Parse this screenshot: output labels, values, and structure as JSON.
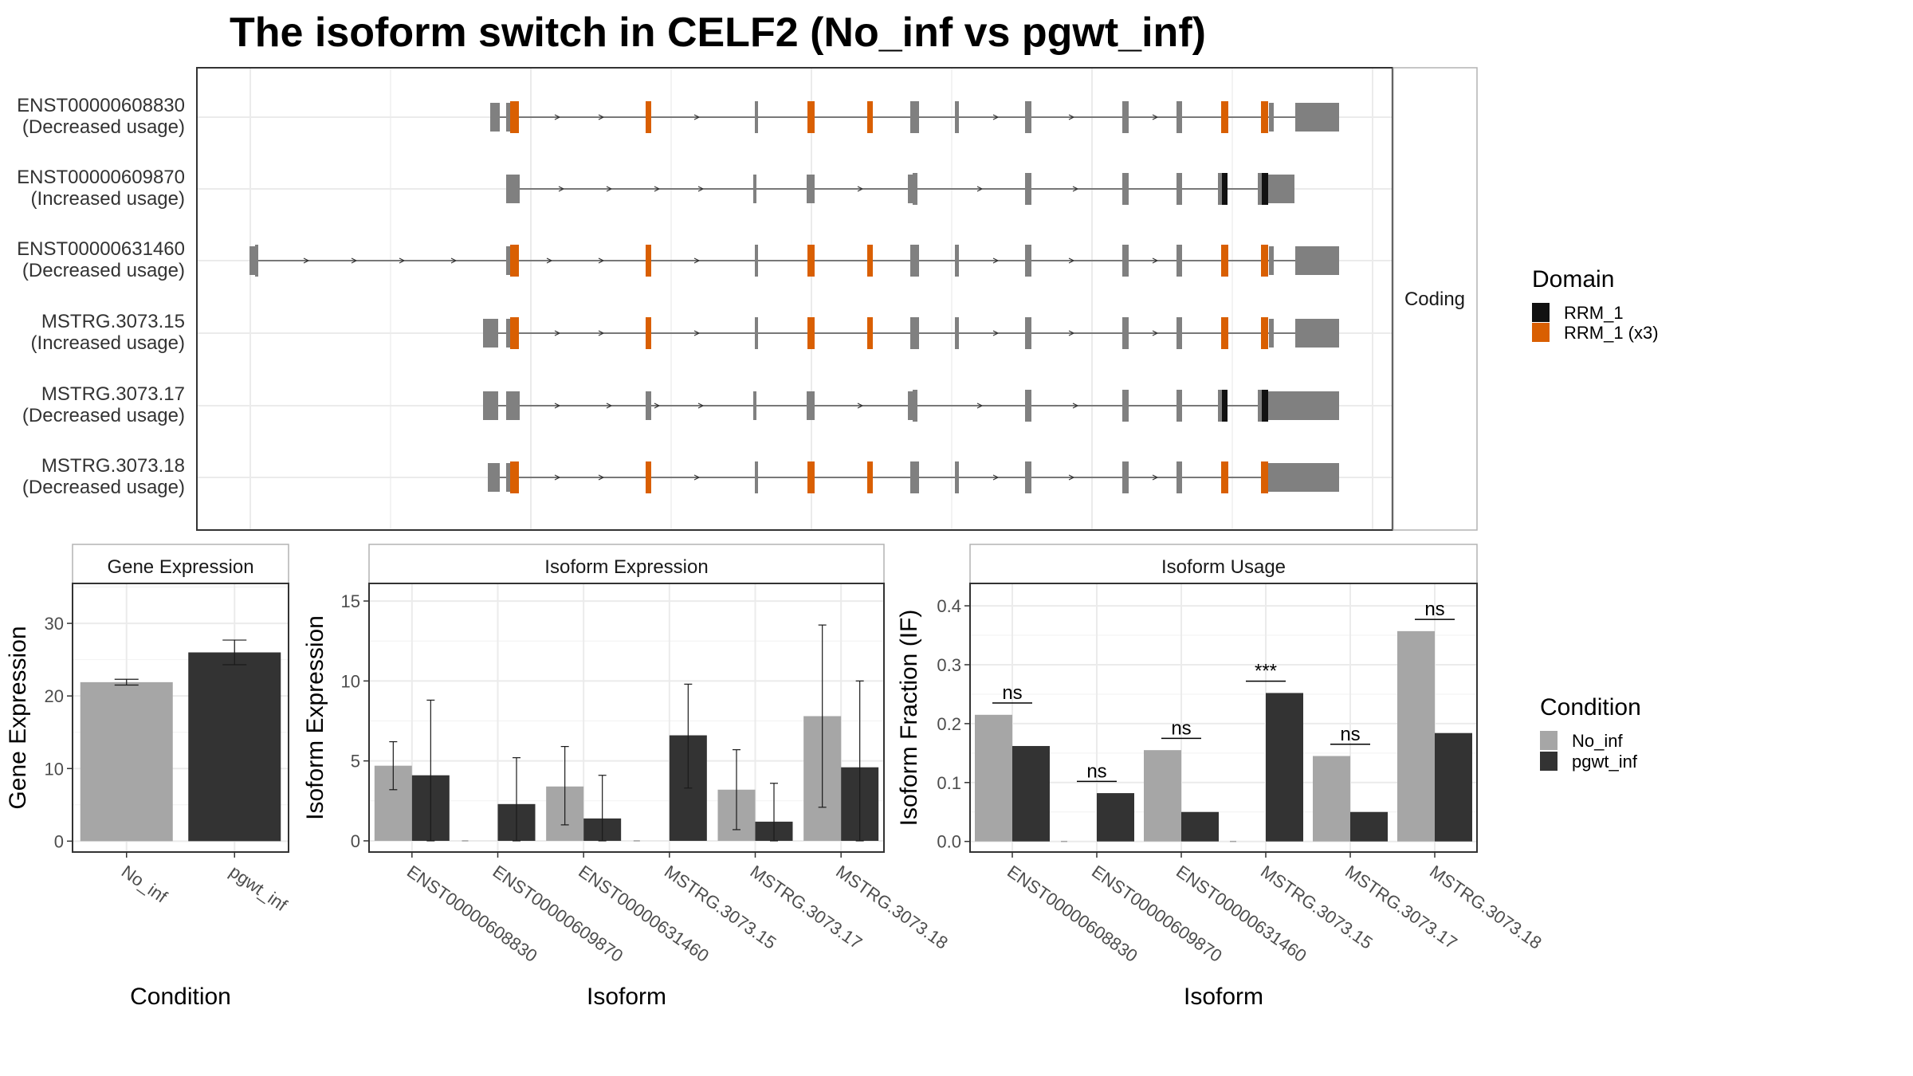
{
  "title": "The isoform switch in CELF2 (No_inf vs pgwt_inf)",
  "colors": {
    "No_inf": "#a6a6a6",
    "pgwt_inf": "#333333",
    "RRM_1": "#111111",
    "RRM_1_x3": "#d95f02",
    "exon": "#808080",
    "intron": "#333333",
    "grid": "#ebebeb",
    "panel_border": "#333333",
    "strip_border": "#b3b3b3"
  },
  "structure": {
    "strip_label": "Coding",
    "transcripts": [
      {
        "id": "ENST00000608830",
        "label": "ENST00000608830",
        "usage": "(Decreased usage)"
      },
      {
        "id": "ENST00000609870",
        "label": "ENST00000609870",
        "usage": "(Increased usage)"
      },
      {
        "id": "ENST00000631460",
        "label": "ENST00000631460",
        "usage": "(Decreased usage)"
      },
      {
        "id": "MSTRG.3073.15",
        "label": "MSTRG.3073.15",
        "usage": "(Increased usage)"
      },
      {
        "id": "MSTRG.3073.17",
        "label": "MSTRG.3073.17",
        "usage": "(Decreased usage)"
      },
      {
        "id": "MSTRG.3073.18",
        "label": "MSTRG.3073.18",
        "usage": "(Decreased usage)"
      }
    ],
    "legend": {
      "title": "Domain",
      "items": [
        {
          "label": "RRM_1",
          "color": "#111111"
        },
        {
          "label": "RRM_1 (x3)",
          "color": "#d95f02"
        }
      ]
    }
  },
  "chart_data": [
    {
      "type": "bar",
      "panel": "Gene Expression",
      "categories": [
        "No_inf",
        "pgwt_inf"
      ],
      "values": [
        21.9,
        26.0
      ],
      "error_low": [
        21.5,
        24.3
      ],
      "error_high": [
        22.3,
        27.7
      ],
      "xlabel": "Condition",
      "ylabel": "Gene Expression",
      "ylim": [
        -1.5,
        35.5
      ],
      "yticks": [
        0,
        10,
        20,
        30
      ]
    },
    {
      "type": "bar",
      "panel": "Isoform Expression",
      "categories": [
        "ENST00000608830",
        "ENST00000609870",
        "ENST00000631460",
        "MSTRG.3073.15",
        "MSTRG.3073.17",
        "MSTRG.3073.18"
      ],
      "series": [
        {
          "name": "No_inf",
          "values": [
            4.7,
            0.0,
            3.4,
            0.0,
            3.2,
            7.8
          ],
          "error_low": [
            3.2,
            0.0,
            1.0,
            0.0,
            0.7,
            2.1
          ],
          "error_high": [
            6.2,
            0.0,
            5.9,
            0.0,
            5.7,
            13.5
          ]
        },
        {
          "name": "pgwt_inf",
          "values": [
            4.1,
            2.3,
            1.4,
            6.6,
            1.2,
            4.6
          ],
          "error_low": [
            0.0,
            0.0,
            0.0,
            3.3,
            0.0,
            0.0
          ],
          "error_high": [
            8.8,
            5.2,
            4.1,
            9.8,
            3.6,
            10.0
          ]
        }
      ],
      "xlabel": "Isoform",
      "ylabel": "Isoform Expression",
      "ylim": [
        -0.7,
        16.1
      ],
      "yticks": [
        0,
        5,
        10,
        15
      ]
    },
    {
      "type": "bar",
      "panel": "Isoform Usage",
      "categories": [
        "ENST00000608830",
        "ENST00000609870",
        "ENST00000631460",
        "MSTRG.3073.15",
        "MSTRG.3073.17",
        "MSTRG.3073.18"
      ],
      "series": [
        {
          "name": "No_inf",
          "values": [
            0.215,
            0.0,
            0.155,
            0.0,
            0.145,
            0.357
          ]
        },
        {
          "name": "pgwt_inf",
          "values": [
            0.162,
            0.082,
            0.05,
            0.252,
            0.05,
            0.184
          ]
        }
      ],
      "significance": [
        "ns",
        "ns",
        "ns",
        "***",
        "ns",
        "ns"
      ],
      "sig_y": [
        0.235,
        0.102,
        0.175,
        0.272,
        0.165,
        0.377
      ],
      "xlabel": "Isoform",
      "ylabel": "Isoform Fraction (IF)",
      "ylim": [
        -0.018,
        0.438
      ],
      "yticks": [
        "0.0",
        "0.1",
        "0.2",
        "0.3",
        "0.4"
      ]
    }
  ],
  "condition_legend": {
    "title": "Condition",
    "items": [
      {
        "label": "No_inf",
        "color": "#a6a6a6"
      },
      {
        "label": "pgwt_inf",
        "color": "#333333"
      }
    ]
  }
}
